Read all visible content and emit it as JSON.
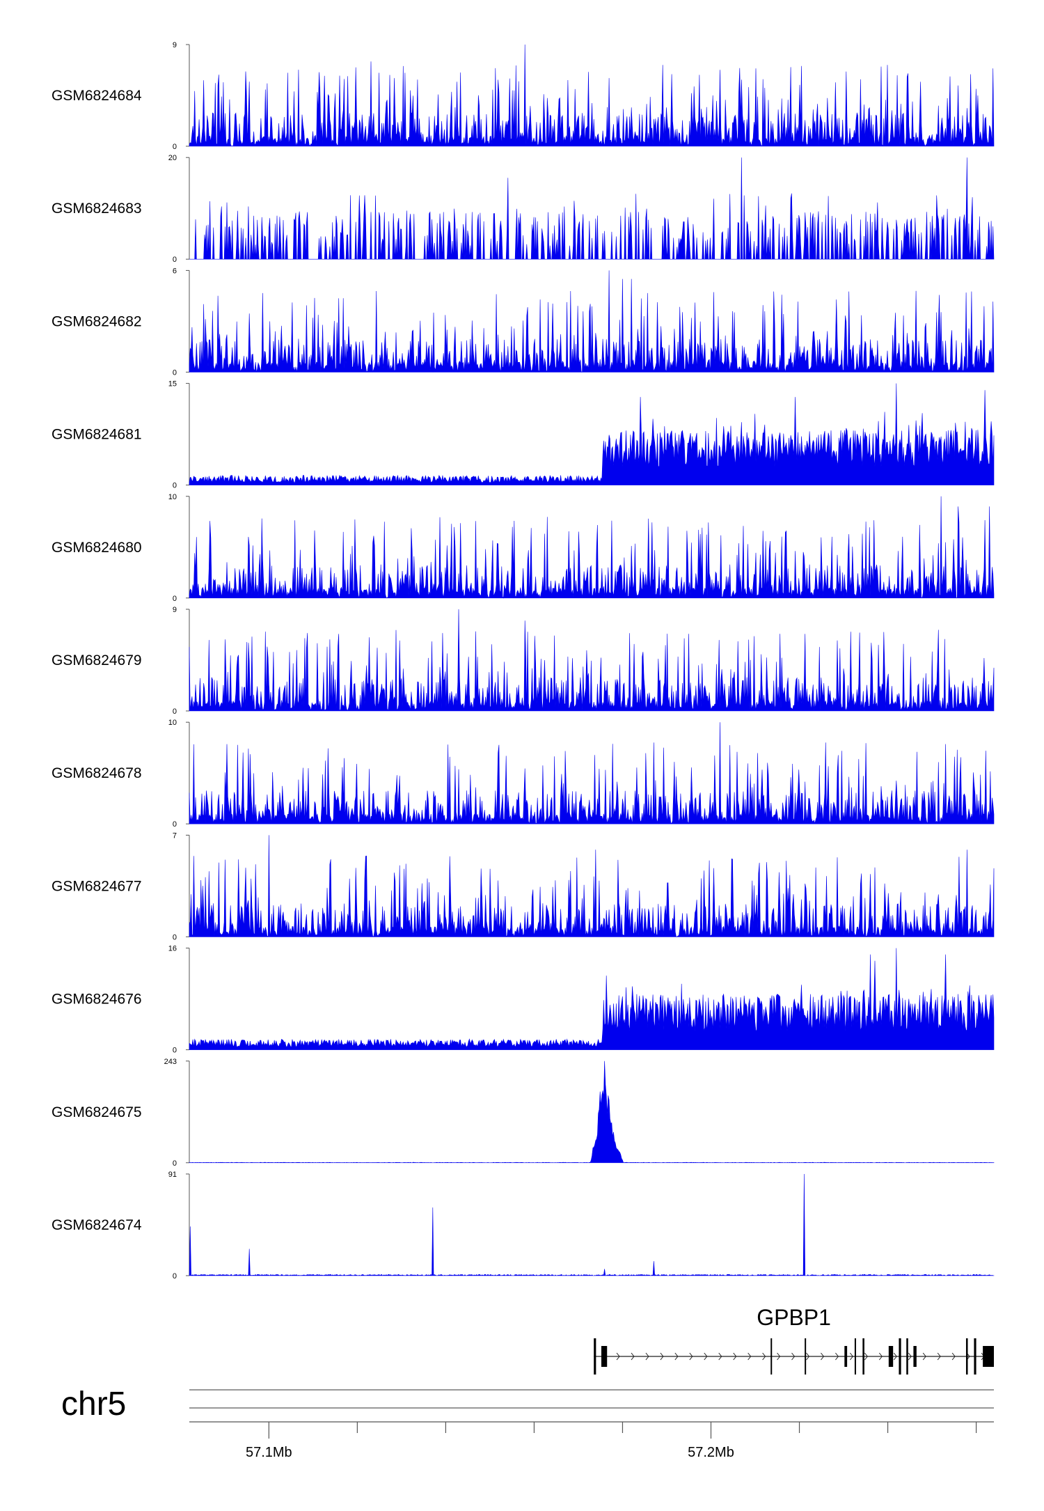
{
  "chart_data": {
    "type": "area",
    "title": "",
    "chromosome": "chr5",
    "xlim": [
      57082000,
      57264000
    ],
    "x_ticks": [
      {
        "value": 57100000,
        "label": "57.1Mb"
      },
      {
        "value": 57200000,
        "label": "57.2Mb"
      }
    ],
    "x_minor_ticks": [
      57120000,
      57140000,
      57160000,
      57180000,
      57220000,
      57240000,
      57260000
    ],
    "fill_color": "#0000ee",
    "tracks": [
      {
        "name": "GSM6824684",
        "ymax": 9,
        "ymin": 0,
        "profile": "noisy",
        "peaks": [
          [
            57158000,
            9
          ],
          [
            57123000,
            7.5
          ],
          [
            57189000,
            7.2
          ],
          [
            57240000,
            7.2
          ],
          [
            57218000,
            7
          ]
        ]
      },
      {
        "name": "GSM6824683",
        "ymax": 20,
        "ymin": 0,
        "profile": "sparse",
        "peaks": [
          [
            57207000,
            20
          ],
          [
            57258000,
            20
          ],
          [
            57154000,
            16
          ],
          [
            57218000,
            12
          ]
        ]
      },
      {
        "name": "GSM6824682",
        "ymax": 6,
        "ymin": 0,
        "profile": "noisy",
        "peaks": [
          [
            57177000,
            6
          ],
          [
            57180000,
            5.5
          ],
          [
            57182000,
            5.5
          ]
        ]
      },
      {
        "name": "GSM6824681",
        "ymax": 15,
        "ymin": 0,
        "profile": "step",
        "step_at": 57175500,
        "low": 1.2,
        "high": 6,
        "peaks": [
          [
            57242000,
            15
          ],
          [
            57262000,
            14
          ],
          [
            57184000,
            13
          ],
          [
            57219000,
            13
          ]
        ]
      },
      {
        "name": "GSM6824680",
        "ymax": 10,
        "ymin": 0,
        "profile": "noisy",
        "peaks": [
          [
            57252000,
            10
          ],
          [
            57256000,
            9
          ],
          [
            57263000,
            9
          ],
          [
            57155000,
            7
          ]
        ]
      },
      {
        "name": "GSM6824679",
        "ymax": 9,
        "ymin": 0,
        "profile": "noisy",
        "peaks": [
          [
            57143000,
            9
          ],
          [
            57158000,
            8
          ],
          [
            57158500,
            7
          ]
        ]
      },
      {
        "name": "GSM6824678",
        "ymax": 10,
        "ymin": 0,
        "profile": "noisy",
        "peaks": [
          [
            57202000,
            10
          ],
          [
            57187000,
            8
          ],
          [
            57226000,
            8
          ]
        ]
      },
      {
        "name": "GSM6824677",
        "ymax": 7,
        "ymin": 0,
        "profile": "noisy",
        "peaks": [
          [
            57100000,
            7
          ],
          [
            57258000,
            6
          ],
          [
            57174000,
            6
          ]
        ]
      },
      {
        "name": "GSM6824676",
        "ymax": 16,
        "ymin": 0,
        "profile": "step",
        "step_at": 57175500,
        "low": 1.4,
        "high": 6.5,
        "peaks": [
          [
            57242000,
            16
          ],
          [
            57236000,
            15
          ],
          [
            57253000,
            15
          ],
          [
            57237000,
            14
          ]
        ]
      },
      {
        "name": "GSM6824675",
        "ymax": 243,
        "ymin": 0,
        "profile": "peak",
        "peaks": [
          [
            57176000,
            243
          ],
          [
            57175000,
            170
          ],
          [
            57177000,
            150
          ],
          [
            57178000,
            70
          ]
        ]
      },
      {
        "name": "GSM6824674",
        "ymax": 91,
        "ymin": 0,
        "profile": "spikes",
        "peaks": [
          [
            57221000,
            91
          ],
          [
            57137000,
            61
          ],
          [
            57082200,
            44
          ],
          [
            57095500,
            24
          ],
          [
            57187000,
            13
          ],
          [
            57176000,
            6
          ]
        ]
      }
    ],
    "gene": {
      "name": "GPBP1",
      "start": 57173500,
      "end": 57264000,
      "strand": "+",
      "exons": [
        [
          57173500,
          57174000
        ],
        [
          57175200,
          57176500
        ],
        [
          57213500,
          57213800
        ],
        [
          57221200,
          57221500
        ],
        [
          57230200,
          57230800
        ],
        [
          57232500,
          57232800
        ],
        [
          57234300,
          57234700
        ],
        [
          57240200,
          57241200
        ],
        [
          57242500,
          57243000
        ],
        [
          57244200,
          57244600
        ],
        [
          57245800,
          57246500
        ],
        [
          57257700,
          57258100
        ],
        [
          57259500,
          57260000
        ],
        [
          57261500,
          57264000
        ]
      ]
    }
  }
}
